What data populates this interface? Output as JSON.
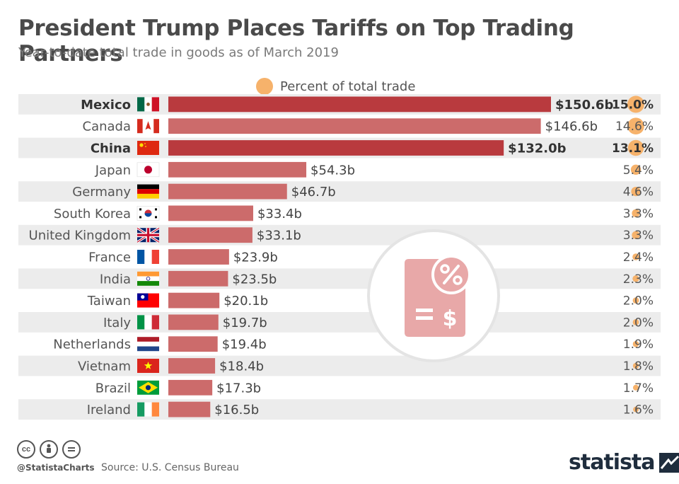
{
  "title": "President Trump Places Tariffs on Top Trading Partners",
  "subtitle": "Year-to-date total trade in goods as of March 2019",
  "legend": {
    "label": "Percent of total trade",
    "color": "#f6b26b"
  },
  "colors": {
    "highlight": "#b93a3e",
    "normal": "#cc6b6b",
    "bubble": "#f6b26b",
    "row_bg": "#ececec"
  },
  "chart_data": {
    "type": "bar",
    "orientation": "horizontal",
    "categories": [
      "Mexico",
      "Canada",
      "China",
      "Japan",
      "Germany",
      "South Korea",
      "United Kingdom",
      "France",
      "India",
      "Taiwan",
      "Italy",
      "Netherlands",
      "Vietnam",
      "Brazil",
      "Ireland"
    ],
    "values": [
      150.6,
      146.6,
      132.0,
      54.3,
      46.7,
      33.4,
      33.1,
      23.9,
      23.5,
      20.1,
      19.7,
      19.4,
      18.4,
      17.3,
      16.5
    ],
    "value_labels": [
      "$150.6b",
      "$146.6b",
      "$132.0b",
      "$54.3b",
      "$46.7b",
      "$33.4b",
      "$33.1b",
      "$23.9b",
      "$23.5b",
      "$20.1b",
      "$19.7b",
      "$19.4b",
      "$18.4b",
      "$17.3b",
      "$16.5b"
    ],
    "percent": [
      15.0,
      14.6,
      13.1,
      5.4,
      4.6,
      3.3,
      3.3,
      2.4,
      2.3,
      2.0,
      2.0,
      1.9,
      1.8,
      1.7,
      1.6
    ],
    "percent_labels": [
      "15.0%",
      "14.6%",
      "13.1%",
      "5.4%",
      "4.6%",
      "3.3%",
      "3.3%",
      "2.4%",
      "2.3%",
      "2.0%",
      "2.0%",
      "1.9%",
      "1.8%",
      "1.7%",
      "1.6%"
    ],
    "highlighted": [
      "Mexico",
      "China"
    ],
    "flags": [
      "mexico-flag-icon",
      "canada-flag-icon",
      "china-flag-icon",
      "japan-flag-icon",
      "germany-flag-icon",
      "south-korea-flag-icon",
      "uk-flag-icon",
      "france-flag-icon",
      "india-flag-icon",
      "taiwan-flag-icon",
      "italy-flag-icon",
      "netherlands-flag-icon",
      "vietnam-flag-icon",
      "brazil-flag-icon",
      "ireland-flag-icon"
    ],
    "xlim": [
      0,
      150.6
    ],
    "grid": false,
    "legend_position": "top-center"
  },
  "footer": {
    "handle": "@StatistaCharts",
    "source": "Source: U.S. Census Bureau",
    "brand": "statista",
    "license_icons": [
      "cc-icon",
      "by-icon",
      "nd-icon"
    ]
  },
  "decoration": {
    "icon": "tariff-document-icon"
  }
}
